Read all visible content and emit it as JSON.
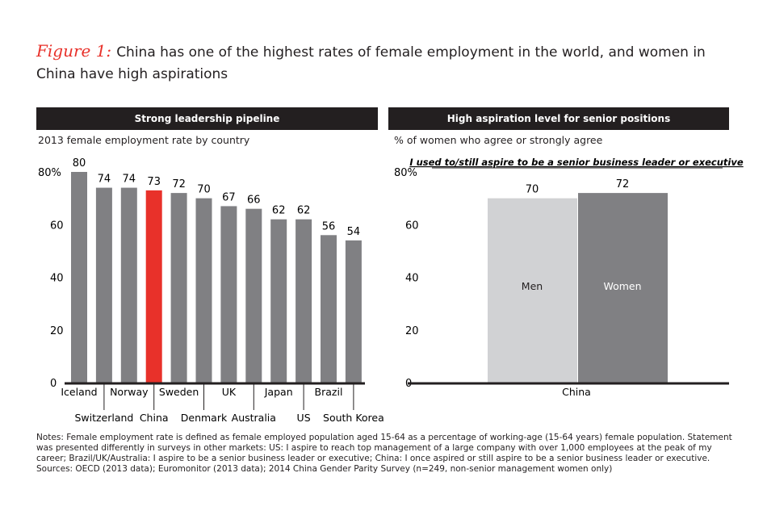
{
  "title": {
    "figure_label": "Figure 1:",
    "text": "China has one of the highest rates of female employment in the world, and women in China have high aspirations"
  },
  "colors": {
    "bar": "#808083",
    "highlight": "#e8312a",
    "men": "#d1d2d4",
    "women": "#808083",
    "header": "#231f20"
  },
  "chart_data": [
    {
      "type": "bar",
      "title": "Strong leadership pipeline",
      "subtitle": "2013 female employment rate by country",
      "ylim": [
        0,
        80
      ],
      "yticks": [
        "0",
        "20",
        "40",
        "60",
        "80%"
      ],
      "highlight": "China",
      "categories": [
        "Iceland",
        "Switzerland",
        "Norway",
        "China",
        "Sweden",
        "Denmark",
        "UK",
        "Australia",
        "Japan",
        "US",
        "Brazil",
        "South Korea"
      ],
      "values": [
        80,
        74,
        74,
        73,
        72,
        70,
        67,
        66,
        62,
        62,
        56,
        54
      ]
    },
    {
      "type": "bar",
      "title": "High aspiration level for senior positions",
      "subtitle": "% of women who agree or strongly agree",
      "annotation": "I used to/still aspire to be a senior business leader or executive",
      "ylim": [
        0,
        80
      ],
      "yticks": [
        "0",
        "20",
        "40",
        "60",
        "80%"
      ],
      "categories": [
        "China"
      ],
      "series": [
        {
          "name": "Men",
          "values": [
            70
          ]
        },
        {
          "name": "Women",
          "values": [
            72
          ]
        }
      ]
    }
  ],
  "notes": "Notes: Female employment rate is defined as female employed population aged 15-64 as a percentage of working-age (15-64 years) female population. Statement was presented differently in surveys in other markets: US: I aspire to reach top management of a large company with over 1,000 employees at the peak of my career; Brazil/UK/Australia: I aspire to be a senior business leader or executive; China: I once aspired or still aspire to be a senior business leader or executive.",
  "sources": "Sources: OECD (2013 data); Euromonitor (2013 data); 2014 China Gender Parity Survey (n=249, non-senior management women only)"
}
